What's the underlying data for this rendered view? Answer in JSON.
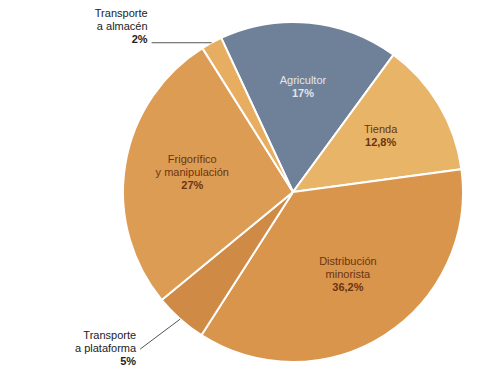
{
  "chart_data": {
    "type": "pie",
    "categories": [
      "Agricultor",
      "Tienda",
      "Distribución minorista",
      "Transporte a plataforma",
      "Frigorífico y manipulación",
      "Transporte a almacén"
    ],
    "values": [
      17,
      12.8,
      36.2,
      5,
      27,
      2
    ],
    "value_labels": [
      "17%",
      "12,8%",
      "36,2%",
      "5%",
      "27%",
      "2%"
    ],
    "colors": [
      "#6f8199",
      "#e8b468",
      "#d9954c",
      "#cf8a46",
      "#dd9c54",
      "#e7ae62"
    ],
    "data_labels": true
  }
}
